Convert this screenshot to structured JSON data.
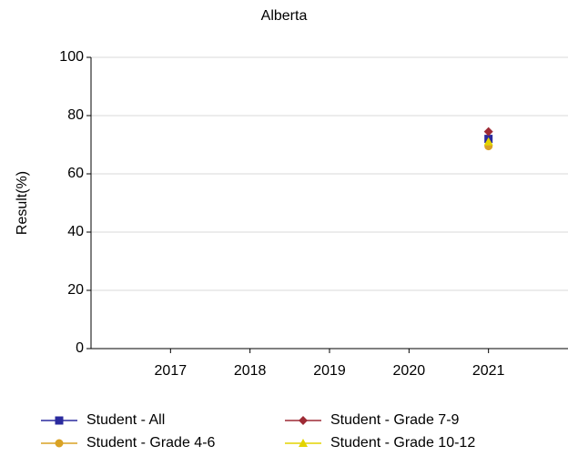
{
  "chart_data": {
    "type": "line",
    "title": "Alberta",
    "y_label": "Result(%)",
    "categories": [
      "2017",
      "2018",
      "2019",
      "2020",
      "2021"
    ],
    "series": [
      {
        "name": "Student - All",
        "color": "#2a2a9e",
        "marker": "square",
        "values": [
          null,
          null,
          null,
          null,
          72
        ]
      },
      {
        "name": "Student - Grade 7-9",
        "color": "#9e2a35",
        "marker": "diamond",
        "values": [
          null,
          null,
          null,
          null,
          74.5
        ]
      },
      {
        "name": "Student - Grade 4-6",
        "color": "#d9a224",
        "marker": "circle",
        "values": [
          null,
          null,
          null,
          null,
          69.5
        ]
      },
      {
        "name": "Student - Grade 10-12",
        "color": "#e3d400",
        "marker": "triangle",
        "values": [
          null,
          null,
          null,
          null,
          71
        ]
      }
    ],
    "ylim": [
      0,
      100
    ],
    "yticks": [
      0,
      20,
      40,
      60,
      80,
      100
    ],
    "grid": true
  }
}
